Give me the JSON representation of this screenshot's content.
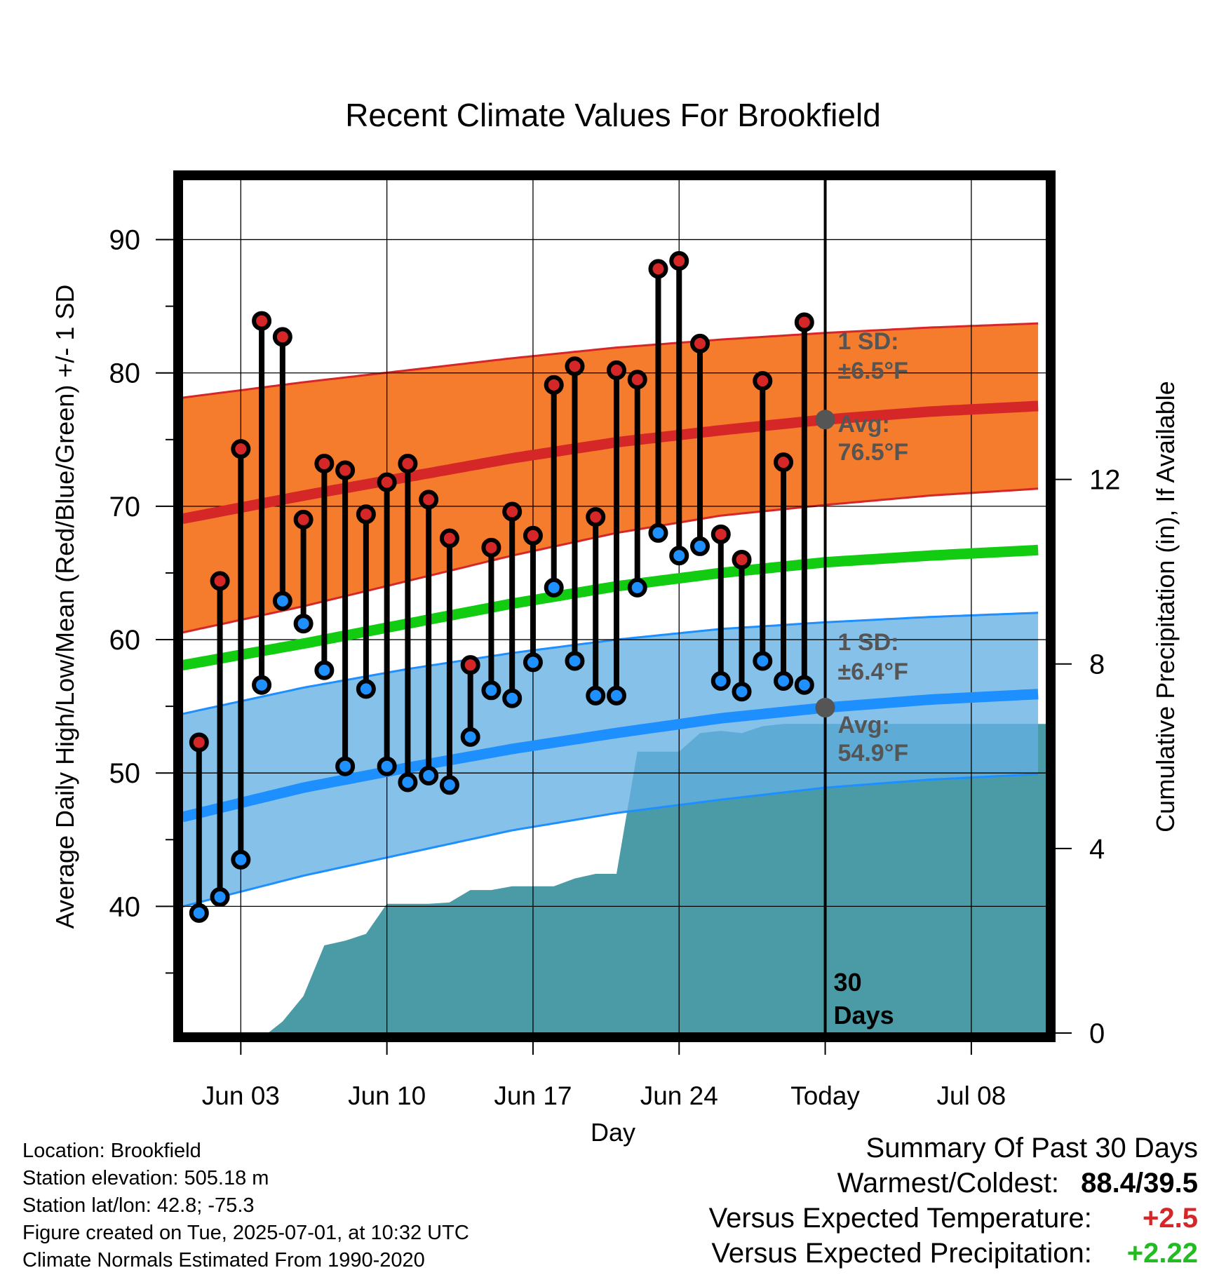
{
  "chart_data": {
    "type": "line",
    "title": "Recent Climate Values For Brookfield",
    "xlabel": "Day",
    "ylabel_left": "Average Daily High/Low/Mean (Red/Blue/Green) +/- 1 SD",
    "ylabel_right": "Cumulative Precipitation (in), If Available",
    "ylim_left": [
      30.5,
      94.5
    ],
    "ylim_right": [
      0,
      18.5
    ],
    "xlim": [
      -0.8,
      40.6
    ],
    "x_ticks": [
      {
        "x": 2,
        "label": "Jun 03"
      },
      {
        "x": 9,
        "label": "Jun 10"
      },
      {
        "x": 16,
        "label": "Jun 17"
      },
      {
        "x": 23,
        "label": "Jun 24"
      },
      {
        "x": 30,
        "label": "Today"
      },
      {
        "x": 37,
        "label": "Jul 08"
      }
    ],
    "y_ticks_left": [
      40,
      50,
      60,
      70,
      80,
      90
    ],
    "y_ticks_right": [
      0,
      4,
      8,
      12
    ],
    "grid": true,
    "today_x": 30,
    "today_label": "30 Days",
    "normals": {
      "x": [
        0,
        5,
        10,
        15,
        20,
        25,
        30,
        35,
        40
      ],
      "high_mean": [
        69.3,
        70.8,
        72.2,
        73.6,
        74.8,
        75.7,
        76.5,
        77.1,
        77.5
      ],
      "high_upper": [
        78.3,
        79.3,
        80.2,
        81.1,
        81.9,
        82.5,
        83.0,
        83.4,
        83.7
      ],
      "high_lower": [
        60.8,
        62.5,
        64.4,
        66.3,
        68.0,
        69.3,
        70.1,
        70.8,
        71.3
      ],
      "avg_mean": [
        58.3,
        59.7,
        61.2,
        62.7,
        64.0,
        65.0,
        65.8,
        66.3,
        66.7
      ],
      "low_mean": [
        47.0,
        48.9,
        50.4,
        51.8,
        53.0,
        54.1,
        54.9,
        55.5,
        55.9
      ],
      "low_upper": [
        54.7,
        56.4,
        57.8,
        59.0,
        60.0,
        60.8,
        61.3,
        61.7,
        62.0
      ],
      "low_lower": [
        40.3,
        42.3,
        44.0,
        45.7,
        47.0,
        48.0,
        48.9,
        49.5,
        49.9
      ],
      "high_sd_label": "1 SD:",
      "high_sd_value": "±6.5°F",
      "high_avg_label": "Avg:",
      "high_avg_value": "76.5°F",
      "low_sd_label": "1 SD:",
      "low_sd_value": "±6.4°F",
      "low_avg_label": "Avg:",
      "low_avg_value": "54.9°F",
      "today_high_avg": 76.5,
      "today_low_avg": 54.9
    },
    "series": [
      {
        "name": "High",
        "color": "#d62728",
        "values": [
          52.3,
          64.4,
          74.3,
          83.9,
          82.7,
          69.0,
          73.2,
          72.7,
          69.4,
          71.8,
          73.2,
          70.5,
          67.6,
          58.1,
          66.9,
          69.6,
          67.8,
          79.1,
          80.5,
          69.2,
          80.2,
          79.5,
          87.8,
          88.4,
          82.2,
          67.9,
          66.0,
          79.4,
          73.3,
          83.8
        ]
      },
      {
        "name": "Low",
        "color": "#1e90ff",
        "values": [
          39.5,
          40.7,
          43.5,
          56.6,
          62.9,
          61.2,
          57.7,
          50.5,
          56.3,
          50.5,
          49.3,
          49.8,
          49.1,
          52.7,
          56.2,
          55.6,
          58.3,
          63.9,
          58.4,
          55.8,
          55.8,
          63.9,
          68.0,
          66.3,
          67.0,
          56.9,
          56.1,
          58.4,
          56.9,
          56.6
        ]
      }
    ],
    "precipitation": {
      "x": [
        3.3,
        4.0,
        5.0,
        6.0,
        7.0,
        8.0,
        9.0,
        10.0,
        11.0,
        12.0,
        13.0,
        14.0,
        15.0,
        16.0,
        17.0,
        18.0,
        19.0,
        20.0,
        21.0,
        22.0,
        23.0,
        24.0,
        25.0,
        26.0,
        27.0,
        28.0,
        29.0,
        30.0,
        40.6
      ],
      "values": [
        0,
        0.25,
        0.8,
        1.9,
        2.0,
        2.15,
        2.8,
        2.8,
        2.8,
        2.83,
        3.1,
        3.1,
        3.18,
        3.18,
        3.18,
        3.35,
        3.45,
        3.45,
        6.1,
        6.1,
        6.1,
        6.5,
        6.55,
        6.5,
        6.65,
        6.7,
        6.7,
        6.7,
        6.7
      ],
      "color": "#4a9ba5"
    }
  },
  "footer": {
    "location": "Location: Brookfield",
    "elevation": "Station elevation: 505.18 m",
    "latlon": "Station lat/lon: 42.8; -75.3",
    "created": "Figure created on Tue, 2025-07-01, at 10:32 UTC",
    "normals": "Climate Normals Estimated From 1990-2020"
  },
  "summary": {
    "title": "Summary Of Past 30 Days",
    "warm_cold_label": "Warmest/Coldest:",
    "warm_cold_value": "88.4/39.5",
    "temp_label": "Versus Expected Temperature:",
    "temp_value": "+2.5",
    "precip_label": "Versus Expected Precipitation:",
    "precip_value": "+2.22",
    "temp_color": "#d62728",
    "precip_color": "#22bb22"
  }
}
